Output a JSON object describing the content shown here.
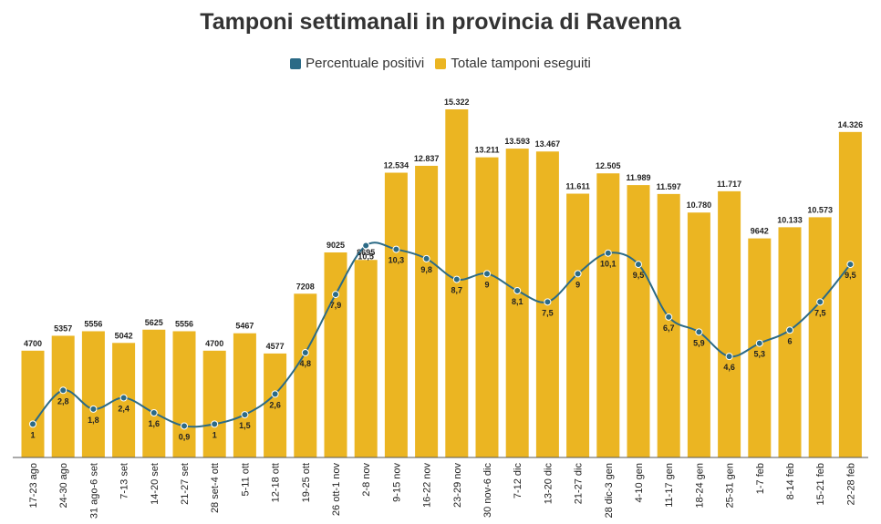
{
  "chart_data": {
    "type": "bar",
    "title": "Tamponi settimanali in provincia di Ravenna",
    "categories": [
      "17-23 ago",
      "24-30 ago",
      "31 ago-6 set",
      "7-13 set",
      "14-20 set",
      "21-27 set",
      "28 set-4 ott",
      "5-11 ott",
      "12-18 ott",
      "19-25 ott",
      "26 ott-1 nov",
      "2-8 nov",
      "9-15 nov",
      "16-22 nov",
      "23-29 nov",
      "30 nov-6 dic",
      "7-12 dic",
      "13-20 dic",
      "21-27 dic",
      "28 dic-3 gen",
      "4-10 gen",
      "11-17 gen",
      "18-24 gen",
      "25-31 gen",
      "1-7 feb",
      "8-14 feb",
      "15-21 feb",
      "22-28 feb"
    ],
    "legend_position": "top-center",
    "grid": false,
    "ylim_bars": [
      0,
      15322
    ],
    "ylim_line": [
      0,
      16
    ],
    "series": [
      {
        "name": "Totale tamponi eseguiti",
        "kind": "bar",
        "color": "#ebb522",
        "values": [
          4700,
          5357,
          5556,
          5042,
          5625,
          5556,
          4700,
          5467,
          4577,
          7208,
          9025,
          8695,
          12534,
          12837,
          15322,
          13211,
          13593,
          13467,
          11611,
          12505,
          11989,
          11597,
          10780,
          11717,
          9642,
          10133,
          10573,
          14326
        ],
        "labels": [
          "4700",
          "5357",
          "5556",
          "5042",
          "5625",
          "5556",
          "4700",
          "5467",
          "4577",
          "7208",
          "9025",
          "8695",
          "12.534",
          "12.837",
          "15.322",
          "13.211",
          "13.593",
          "13.467",
          "11.611",
          "12.505",
          "11.989",
          "11.597",
          "10.780",
          "11.717",
          "9642",
          "10.133",
          "10.573",
          "14.326"
        ]
      },
      {
        "name": "Percentuale positivi",
        "kind": "line",
        "color": "#2b6a86",
        "values": [
          1,
          2.8,
          1.8,
          2.4,
          1.6,
          0.9,
          1,
          1.5,
          2.6,
          4.8,
          7.9,
          10.5,
          10.3,
          9.8,
          8.7,
          9,
          8.1,
          7.5,
          9,
          10.1,
          9.5,
          6.7,
          5.9,
          4.6,
          5.3,
          6,
          7.5,
          9.5
        ],
        "labels": [
          "1",
          "2,8",
          "1,8",
          "2,4",
          "1,6",
          "0,9",
          "1",
          "1,5",
          "2,6",
          "4,8",
          "7,9",
          "10,5",
          "10,3",
          "9,8",
          "8,7",
          "9",
          "8,1",
          "7,5",
          "9",
          "10,1",
          "9,5",
          "6,7",
          "5,9",
          "4,6",
          "5,3",
          "6",
          "7,5",
          "9,5"
        ]
      }
    ]
  }
}
